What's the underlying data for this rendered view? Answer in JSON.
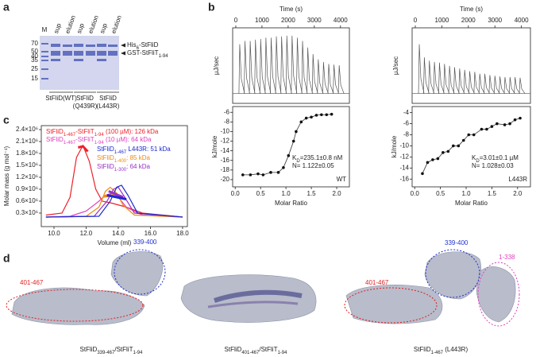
{
  "panel_a": {
    "label": "a",
    "lanes": [
      "M",
      "sup",
      "elution",
      "sup",
      "elution",
      "sup",
      "elution"
    ],
    "markers": [
      "70",
      "50",
      "40",
      "35",
      "25",
      "15"
    ],
    "bands": [
      [
        "His",
        "6",
        "-StFliD"
      ],
      [
        "GST-StFliT",
        "1-94"
      ]
    ],
    "groups": [
      [
        "StFliD(WT)"
      ],
      [
        "StFliD",
        "(Q439R)"
      ],
      [
        "StFliD",
        "(L443R)"
      ]
    ]
  },
  "panel_b": {
    "label": "b",
    "plots": [
      {
        "time_label": "Time (s)",
        "time_lim": [
          -120,
          4340
        ],
        "time_ticks": [
          0,
          1000,
          2000,
          3000,
          4000
        ],
        "top_ylabel": "µJ/sec",
        "bottom_ylabel": "kJ/mole",
        "x_label": "Molar Ratio",
        "top_ylim": [
          -0.15,
          1
        ],
        "injection_start": 150,
        "injection_interval": 200,
        "peaks": [
          0.75,
          0.8,
          0.8,
          0.82,
          0.83,
          0.85,
          0.85,
          0.87,
          0.87,
          0.88,
          0.88,
          0.85,
          0.8,
          0.7,
          0.6,
          0.52,
          0.48,
          0.45,
          0.44,
          0.43
        ],
        "xlim": [
          -0.05,
          2.25
        ],
        "xticks": [
          {
            "value": 0,
            "label": "0.0"
          },
          {
            "value": 0.5,
            "label": "0.5"
          },
          {
            "value": 1,
            "label": "1.0"
          },
          {
            "value": 1.5,
            "label": "1.5"
          },
          {
            "value": 2,
            "label": "2.0"
          }
        ],
        "ylim": [
          -21.5,
          -4.8
        ],
        "yticks": [
          -6,
          -8,
          -10,
          -12,
          -14,
          -16,
          -18,
          -20
        ],
        "points_x": [
          0.15,
          0.3,
          0.45,
          0.55,
          0.7,
          0.85,
          0.95,
          1.05,
          1.15,
          1.2,
          1.3,
          1.4,
          1.5,
          1.6,
          1.7,
          1.8,
          1.9
        ],
        "points_y": [
          -19,
          -19,
          -18.8,
          -19,
          -18.5,
          -18.5,
          -17.5,
          -15,
          -12,
          -10,
          -8,
          -7.2,
          -7,
          -6.6,
          -6.5,
          -6.5,
          -6.4
        ],
        "annotations": [
          [
            "K",
            "D",
            "=235.1±0.8 nM"
          ],
          [
            "N= 1.122±0.05"
          ]
        ],
        "sample": "WT"
      },
      {
        "time_label": "Time (s)",
        "time_lim": [
          -120,
          4340
        ],
        "time_ticks": [
          0,
          1000,
          2000,
          3000,
          4000
        ],
        "top_ylabel": "µJ/sec",
        "bottom_ylabel": "kJ/mole",
        "x_label": "Molar Ratio",
        "top_ylim": [
          -0.15,
          1
        ],
        "injection_start": 150,
        "injection_interval": 190,
        "peaks": [
          0.75,
          0.55,
          0.5,
          0.48,
          0.47,
          0.45,
          0.42,
          0.4,
          0.38,
          0.36,
          0.34,
          0.33,
          0.3,
          0.3,
          0.28,
          0.27,
          0.26,
          0.25,
          0.25,
          0.25,
          0.24
        ],
        "xlim": [
          -0.05,
          2.25
        ],
        "xticks": [
          {
            "value": 0,
            "label": "0.0"
          },
          {
            "value": 0.5,
            "label": "0.5"
          },
          {
            "value": 1,
            "label": "1.0"
          },
          {
            "value": 1.5,
            "label": "1.5"
          },
          {
            "value": 2,
            "label": "2.0"
          }
        ],
        "ylim": [
          -17.4,
          -2.9
        ],
        "yticks": [
          -4,
          -6,
          -8,
          -10,
          -12,
          -14,
          -16
        ],
        "points_x": [
          0.15,
          0.25,
          0.35,
          0.45,
          0.55,
          0.65,
          0.75,
          0.85,
          0.95,
          1.05,
          1.15,
          1.3,
          1.4,
          1.5,
          1.6,
          1.75,
          1.85,
          1.95,
          2.05
        ],
        "points_y": [
          -15,
          -13,
          -12.5,
          -12.3,
          -11.2,
          -11,
          -10,
          -10,
          -9,
          -8,
          -8,
          -7,
          -7,
          -6.5,
          -6,
          -6.2,
          -6,
          -5.3,
          -5
        ],
        "annotations": [
          [
            "K",
            "D",
            "=3.01±0.1 µM"
          ],
          [
            "N= 1.028±0.03"
          ]
        ],
        "sample": "L443R"
      }
    ]
  },
  "panel_c": {
    "label": "c",
    "x_label": "Volume (ml)",
    "y_label": "Molar mass (g mol⁻¹)",
    "xlim": [
      9.21,
      18.3
    ],
    "xticks": [
      {
        "value": 10,
        "label": "10.0"
      },
      {
        "value": 12,
        "label": "12.0"
      },
      {
        "value": 14,
        "label": "14.0"
      },
      {
        "value": 16,
        "label": "16.0"
      },
      {
        "value": 18,
        "label": "18.0"
      }
    ],
    "ylim": [
      -40000,
      2500000
    ],
    "yticks": [
      {
        "value": 300000,
        "label": "0.3×10⁶"
      },
      {
        "value": 600000,
        "label": "0.6×10⁶"
      },
      {
        "value": 900000,
        "label": "0.9×10⁶"
      },
      {
        "value": 1200000,
        "label": "1.2×10⁶"
      },
      {
        "value": 1500000,
        "label": "1.5×10⁶"
      },
      {
        "value": 1800000,
        "label": "1.8×10⁶"
      },
      {
        "value": 2100000,
        "label": "2.1×10⁶"
      },
      {
        "value": 2400000,
        "label": "2.4×10⁶"
      }
    ],
    "traces": [
      {
        "color": "#f0202a",
        "width": 1.2,
        "x": [
          9.5,
          10.5,
          11,
          11.4,
          11.8,
          12.2,
          12.6,
          13,
          13.6,
          14.5,
          15.5,
          18
        ],
        "values": [
          250000,
          300000,
          700000,
          1700000,
          2000000,
          1600000,
          900000,
          600000,
          550000,
          450000,
          300000,
          200000
        ]
      },
      {
        "color": "#e040c0",
        "width": 1.2,
        "x": [
          9.5,
          11,
          12,
          12.8,
          13.2,
          13.6,
          14,
          14.5,
          15.5,
          18
        ],
        "values": [
          200000,
          220000,
          350000,
          600000,
          750000,
          800000,
          700000,
          450000,
          250000,
          200000
        ]
      },
      {
        "color": "#f08a10",
        "width": 1.2,
        "x": [
          9.5,
          12,
          12.8,
          13.2,
          13.5,
          13.9,
          14.3,
          15,
          18
        ],
        "values": [
          200000,
          220000,
          450000,
          850000,
          950000,
          800000,
          500000,
          250000,
          200000
        ]
      },
      {
        "color": "#9a30c8",
        "width": 1.2,
        "x": [
          9.5,
          12.5,
          13.3,
          13.7,
          14,
          14.4,
          15,
          18
        ],
        "values": [
          200000,
          220000,
          600000,
          900000,
          950000,
          700000,
          300000,
          200000
        ]
      },
      {
        "color": "#1a2ad0",
        "width": 1.2,
        "x": [
          9.5,
          12.8,
          13.5,
          13.9,
          14.2,
          14.6,
          15.2,
          18
        ],
        "values": [
          200000,
          220000,
          600000,
          950000,
          1000000,
          750000,
          300000,
          200000
        ]
      },
      {
        "color": "#f0202a",
        "width": 3,
        "x": [
          11.5,
          11.8,
          12.1
        ],
        "values": [
          1950000,
          1980000,
          1850000
        ]
      },
      {
        "color": "#f08a10",
        "width": 3,
        "x": [
          13.1,
          13.8
        ],
        "values": [
          720000,
          750000
        ]
      },
      {
        "color": "#9a30c8",
        "width": 3,
        "x": [
          13.4,
          14.3
        ],
        "values": [
          850000,
          700000
        ]
      },
      {
        "color": "#1a2ad0",
        "width": 3,
        "x": [
          13.3,
          14.5
        ],
        "values": [
          750000,
          650000
        ]
      }
    ],
    "legend": [
      {
        "color": "#f0202a",
        "text": [
          "StFliD",
          "1-467",
          "-StFliT",
          "1-94",
          " (100 µM): 126 kDa"
        ]
      },
      {
        "color": "#e040c0",
        "text": [
          "StFliD",
          "1-467",
          "-StFliT",
          "1-94",
          " (10 µM): 64 kDa"
        ]
      },
      {
        "color": "#1a2ad0",
        "text": [
          "StFliD",
          "1-467",
          " L443R: 51 kDa"
        ]
      },
      {
        "color": "#f08a10",
        "text": [
          "StFliD",
          "1-400",
          ": 85 kDa"
        ]
      },
      {
        "color": "#9a30c8",
        "text": [
          "StFliD",
          "1-300",
          ": 64 kDa"
        ]
      }
    ]
  },
  "panel_d": {
    "label": "d",
    "regions": [
      "401-467",
      "339-400",
      "401-467",
      "339-400",
      "1-338"
    ],
    "captions": [
      [
        "StFliD",
        "339-467",
        "/StFliT",
        "1-94"
      ],
      [
        "StFliD",
        "401-467",
        "/StFliT",
        "1-94"
      ],
      [
        "StFliD",
        "1-467",
        " (L443R)"
      ]
    ]
  }
}
